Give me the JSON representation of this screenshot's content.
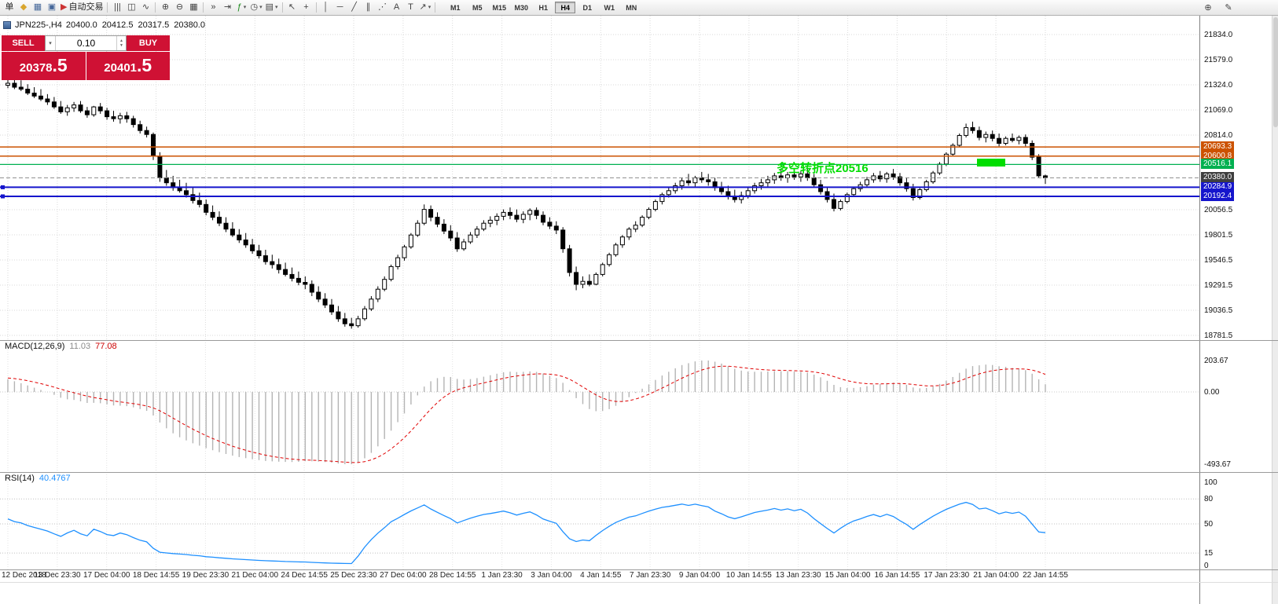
{
  "colors": {
    "panel_red": "#cf1134",
    "annotation_green": "#00dd00",
    "axis_text": "#111111"
  },
  "toolbar": {
    "items": [
      {
        "name": "new-order-button",
        "glyph": "单",
        "color": "#222222"
      },
      {
        "name": "market-watch-button",
        "glyph": "◆",
        "color": "#d9a62e"
      },
      {
        "name": "navigator-button",
        "glyph": "▦",
        "color": "#46689a"
      },
      {
        "name": "terminal-button",
        "glyph": "▣",
        "color": "#46689a"
      },
      {
        "name": "autotrading-button",
        "glyph": "▶",
        "color": "#cc3333",
        "label": "自动交易"
      },
      {
        "sep": true
      },
      {
        "name": "bar-chart-button",
        "glyph": "|||"
      },
      {
        "name": "candlestick-chart-button",
        "glyph": "◫"
      },
      {
        "name": "line-chart-button",
        "glyph": "∿"
      },
      {
        "sep": true
      },
      {
        "name": "zoom-in-button",
        "glyph": "⊕"
      },
      {
        "name": "zoom-out-button",
        "glyph": "⊖"
      },
      {
        "name": "tile-windows-button",
        "glyph": "▦"
      },
      {
        "sep": true
      },
      {
        "name": "auto-scroll-button",
        "glyph": "»"
      },
      {
        "name": "chart-shift-button",
        "glyph": "⇥"
      },
      {
        "name": "indicators-button",
        "glyph": "ƒ",
        "color": "#1a8a1a",
        "caret": true
      },
      {
        "name": "periods-button",
        "glyph": "◷",
        "caret": true
      },
      {
        "name": "templates-button",
        "glyph": "▤",
        "caret": true
      },
      {
        "sep": true
      },
      {
        "name": "cursor-button",
        "glyph": "↖"
      },
      {
        "name": "crosshair-button",
        "glyph": "+"
      },
      {
        "sep": true
      },
      {
        "name": "vertical-line-button",
        "glyph": "│"
      },
      {
        "name": "horizontal-line-button",
        "glyph": "─"
      },
      {
        "name": "trendline-button",
        "glyph": "╱"
      },
      {
        "name": "channel-button",
        "glyph": "∥"
      },
      {
        "name": "fibonacci-button",
        "glyph": "⋰"
      },
      {
        "name": "text-button",
        "glyph": "A"
      },
      {
        "name": "text-label-button",
        "glyph": "T"
      },
      {
        "name": "arrows-button",
        "glyph": "↗",
        "caret": true
      },
      {
        "sep": true
      }
    ],
    "timeframes": [
      "M1",
      "M5",
      "M15",
      "M30",
      "H1",
      "H4",
      "D1",
      "W1",
      "MN"
    ],
    "active_timeframe": "H4",
    "right_items": [
      {
        "name": "zoom-plus-button",
        "glyph": "⊕"
      },
      {
        "name": "edit-button",
        "glyph": "✎"
      }
    ]
  },
  "chart": {
    "title": "JPN225-,H4",
    "open": "20400.0",
    "high": "20412.5",
    "low": "20317.5",
    "close": "20380.0",
    "hlines": [
      {
        "value": 20693.3,
        "label": "20693.3",
        "color": "#cc5200",
        "width": 1.5
      },
      {
        "value": 20600.8,
        "label": "20600.8",
        "color": "#cc5200",
        "width": 1.5
      },
      {
        "value": 20516.1,
        "label": "20516.1",
        "color": "#00b050",
        "width": 1.2
      },
      {
        "value": 20284.9,
        "label": "20284.9",
        "color": "#1515cc",
        "width": 2,
        "handles": true
      },
      {
        "value": 20192.4,
        "label": "20192.4",
        "color": "#1515cc",
        "width": 2,
        "handles": true
      }
    ],
    "current_price": {
      "value": 20380.0,
      "label": "20380.0",
      "color": "#3f3f3f"
    },
    "annotation": {
      "text": "多空转折点20516",
      "color": "#00dd00"
    },
    "highlight_rect_color": "#00dd00"
  },
  "trade_panel": {
    "sell_label": "SELL",
    "buy_label": "BUY",
    "volume": "0.10",
    "sell_price_main": "20378",
    "sell_price_frac": ".5",
    "buy_price_main": "20401",
    "buy_price_frac": ".5"
  },
  "chart_data": {
    "type": "candlestick",
    "symbol": "JPN225-",
    "period": "H4",
    "y_axis": {
      "ticks": [
        "21834.0",
        "21579.0",
        "21324.0",
        "21069.0",
        "20814.0",
        "20056.5",
        "19801.5",
        "19546.5",
        "19291.5",
        "19036.5",
        "18781.5"
      ],
      "range": [
        18734,
        22025
      ]
    },
    "x_labels": [
      "12 Dec 2018",
      "13 Dec 23:30",
      "17 Dec 04:00",
      "18 Dec 14:55",
      "19 Dec 23:30",
      "21 Dec 04:00",
      "24 Dec 14:55",
      "25 Dec 23:30",
      "27 Dec 04:00",
      "28 Dec 14:55",
      "1 Jan 23:30",
      "3 Jan 04:00",
      "4 Jan 14:55",
      "7 Jan 23:30",
      "9 Jan 04:00",
      "10 Jan 14:55",
      "13 Jan 23:30",
      "15 Jan 04:00",
      "16 Jan 14:55",
      "17 Jan 23:30",
      "21 Jan 04:00",
      "22 Jan 14:55"
    ],
    "candles": [
      [
        21320,
        21400,
        21290,
        21340
      ],
      [
        21340,
        21390,
        21280,
        21300
      ],
      [
        21300,
        21370,
        21260,
        21280
      ],
      [
        21280,
        21330,
        21220,
        21240
      ],
      [
        21240,
        21300,
        21190,
        21210
      ],
      [
        21210,
        21280,
        21160,
        21180
      ],
      [
        21180,
        21230,
        21120,
        21150
      ],
      [
        21150,
        21200,
        21080,
        21100
      ],
      [
        21100,
        21160,
        21030,
        21050
      ],
      [
        21050,
        21120,
        21010,
        21090
      ],
      [
        21090,
        21150,
        21050,
        21120
      ],
      [
        21120,
        21160,
        21040,
        21060
      ],
      [
        21060,
        21100,
        20990,
        21020
      ],
      [
        21020,
        21110,
        21000,
        21100
      ],
      [
        21100,
        21140,
        21030,
        21060
      ],
      [
        21060,
        21090,
        20970,
        21000
      ],
      [
        21000,
        21060,
        20950,
        20980
      ],
      [
        20980,
        21040,
        20930,
        21010
      ],
      [
        21010,
        21050,
        20940,
        20980
      ],
      [
        20980,
        21010,
        20890,
        20920
      ],
      [
        20920,
        20960,
        20830,
        20860
      ],
      [
        20860,
        20900,
        20790,
        20820
      ],
      [
        20820,
        20840,
        20560,
        20600
      ],
      [
        20600,
        20640,
        20340,
        20380
      ],
      [
        20380,
        20460,
        20300,
        20330
      ],
      [
        20330,
        20400,
        20250,
        20280
      ],
      [
        20280,
        20360,
        20230,
        20250
      ],
      [
        20250,
        20330,
        20180,
        20210
      ],
      [
        20210,
        20280,
        20120,
        20150
      ],
      [
        20150,
        20230,
        20080,
        20110
      ],
      [
        20110,
        20160,
        20000,
        20030
      ],
      [
        20030,
        20100,
        19950,
        19980
      ],
      [
        19980,
        20040,
        19890,
        19920
      ],
      [
        19920,
        19980,
        19830,
        19860
      ],
      [
        19860,
        19930,
        19780,
        19800
      ],
      [
        19800,
        19860,
        19720,
        19750
      ],
      [
        19750,
        19820,
        19670,
        19700
      ],
      [
        19700,
        19760,
        19610,
        19640
      ],
      [
        19640,
        19700,
        19560,
        19590
      ],
      [
        19590,
        19650,
        19500,
        19530
      ],
      [
        19530,
        19600,
        19460,
        19500
      ],
      [
        19500,
        19560,
        19410,
        19450
      ],
      [
        19450,
        19520,
        19380,
        19400
      ],
      [
        19400,
        19470,
        19330,
        19360
      ],
      [
        19360,
        19430,
        19290,
        19320
      ],
      [
        19320,
        19380,
        19250,
        19300
      ],
      [
        19300,
        19340,
        19180,
        19220
      ],
      [
        19220,
        19280,
        19120,
        19150
      ],
      [
        19150,
        19210,
        19060,
        19090
      ],
      [
        19090,
        19150,
        18990,
        19020
      ],
      [
        19020,
        19080,
        18920,
        18950
      ],
      [
        18950,
        19010,
        18870,
        18900
      ],
      [
        18900,
        18960,
        18850,
        18880
      ],
      [
        18880,
        18980,
        18860,
        18950
      ],
      [
        18950,
        19080,
        18930,
        19050
      ],
      [
        19050,
        19180,
        19030,
        19150
      ],
      [
        19150,
        19280,
        19120,
        19250
      ],
      [
        19250,
        19380,
        19230,
        19350
      ],
      [
        19350,
        19500,
        19330,
        19480
      ],
      [
        19480,
        19600,
        19450,
        19570
      ],
      [
        19570,
        19700,
        19540,
        19680
      ],
      [
        19680,
        19820,
        19660,
        19800
      ],
      [
        19800,
        19950,
        19780,
        19920
      ],
      [
        19920,
        20110,
        19900,
        20060
      ],
      [
        20060,
        20100,
        19940,
        19980
      ],
      [
        19980,
        20030,
        19880,
        19910
      ],
      [
        19910,
        19960,
        19810,
        19840
      ],
      [
        19840,
        19900,
        19740,
        19770
      ],
      [
        19770,
        19830,
        19630,
        19660
      ],
      [
        19660,
        19760,
        19640,
        19730
      ],
      [
        19730,
        19830,
        19710,
        19800
      ],
      [
        19800,
        19890,
        19770,
        19860
      ],
      [
        19860,
        19950,
        19840,
        19920
      ],
      [
        19920,
        19990,
        19880,
        19950
      ],
      [
        19950,
        20020,
        19900,
        19990
      ],
      [
        19990,
        20060,
        19950,
        20030
      ],
      [
        20030,
        20080,
        19960,
        20000
      ],
      [
        20000,
        20060,
        19930,
        19960
      ],
      [
        19960,
        20040,
        19920,
        20010
      ],
      [
        20010,
        20070,
        19950,
        20050
      ],
      [
        20050,
        20080,
        19960,
        20000
      ],
      [
        20000,
        20040,
        19900,
        19930
      ],
      [
        19930,
        19980,
        19860,
        19890
      ],
      [
        19890,
        19940,
        19810,
        19850
      ],
      [
        19850,
        19880,
        19620,
        19660
      ],
      [
        19660,
        19700,
        19380,
        19420
      ],
      [
        19420,
        19480,
        19240,
        19300
      ],
      [
        19300,
        19380,
        19260,
        19330
      ],
      [
        19330,
        19400,
        19280,
        19300
      ],
      [
        19300,
        19420,
        19290,
        19400
      ],
      [
        19400,
        19520,
        19380,
        19500
      ],
      [
        19500,
        19620,
        19480,
        19600
      ],
      [
        19600,
        19720,
        19580,
        19700
      ],
      [
        19700,
        19800,
        19670,
        19780
      ],
      [
        19780,
        19880,
        19750,
        19860
      ],
      [
        19860,
        19940,
        19830,
        19900
      ],
      [
        19900,
        20000,
        19880,
        19980
      ],
      [
        19980,
        20080,
        19960,
        20060
      ],
      [
        20060,
        20160,
        20040,
        20140
      ],
      [
        20140,
        20230,
        20110,
        20210
      ],
      [
        20210,
        20290,
        20180,
        20250
      ],
      [
        20250,
        20330,
        20220,
        20300
      ],
      [
        20300,
        20380,
        20260,
        20350
      ],
      [
        20350,
        20420,
        20300,
        20330
      ],
      [
        20330,
        20400,
        20290,
        20380
      ],
      [
        20380,
        20440,
        20330,
        20360
      ],
      [
        20360,
        20420,
        20300,
        20340
      ],
      [
        20340,
        20380,
        20250,
        20280
      ],
      [
        20280,
        20340,
        20210,
        20240
      ],
      [
        20240,
        20300,
        20160,
        20190
      ],
      [
        20190,
        20260,
        20130,
        20160
      ],
      [
        20160,
        20240,
        20120,
        20200
      ],
      [
        20200,
        20280,
        20170,
        20250
      ],
      [
        20250,
        20330,
        20220,
        20300
      ],
      [
        20300,
        20370,
        20260,
        20330
      ],
      [
        20330,
        20400,
        20290,
        20360
      ],
      [
        20360,
        20430,
        20320,
        20400
      ],
      [
        20400,
        20460,
        20350,
        20380
      ],
      [
        20380,
        20440,
        20330,
        20410
      ],
      [
        20410,
        20470,
        20360,
        20390
      ],
      [
        20390,
        20450,
        20340,
        20420
      ],
      [
        20420,
        20470,
        20350,
        20380
      ],
      [
        20380,
        20420,
        20280,
        20310
      ],
      [
        20310,
        20360,
        20210,
        20240
      ],
      [
        20240,
        20290,
        20130,
        20160
      ],
      [
        20160,
        20220,
        20040,
        20070
      ],
      [
        20070,
        20160,
        20050,
        20140
      ],
      [
        20140,
        20230,
        20120,
        20210
      ],
      [
        20210,
        20290,
        20190,
        20270
      ],
      [
        20270,
        20340,
        20240,
        20310
      ],
      [
        20310,
        20390,
        20280,
        20360
      ],
      [
        20360,
        20430,
        20330,
        20400
      ],
      [
        20400,
        20450,
        20340,
        20370
      ],
      [
        20370,
        20440,
        20330,
        20420
      ],
      [
        20420,
        20470,
        20360,
        20390
      ],
      [
        20390,
        20430,
        20300,
        20330
      ],
      [
        20330,
        20380,
        20240,
        20270
      ],
      [
        20270,
        20320,
        20150,
        20180
      ],
      [
        20180,
        20280,
        20160,
        20260
      ],
      [
        20260,
        20360,
        20240,
        20340
      ],
      [
        20340,
        20450,
        20320,
        20430
      ],
      [
        20430,
        20540,
        20410,
        20520
      ],
      [
        20520,
        20640,
        20500,
        20620
      ],
      [
        20620,
        20730,
        20600,
        20710
      ],
      [
        20710,
        20830,
        20690,
        20810
      ],
      [
        20810,
        20930,
        20790,
        20890
      ],
      [
        20890,
        20950,
        20830,
        20860
      ],
      [
        20860,
        20900,
        20760,
        20790
      ],
      [
        20790,
        20850,
        20740,
        20820
      ],
      [
        20820,
        20860,
        20750,
        20780
      ],
      [
        20780,
        20830,
        20700,
        20730
      ],
      [
        20730,
        20800,
        20710,
        20780
      ],
      [
        20780,
        20830,
        20740,
        20760
      ],
      [
        20760,
        20810,
        20720,
        20790
      ],
      [
        20790,
        20820,
        20700,
        20730
      ],
      [
        20730,
        20760,
        20560,
        20590
      ],
      [
        20590,
        20620,
        20380,
        20400
      ],
      [
        20400,
        20412.5,
        20317.5,
        20380
      ]
    ],
    "indicators": {
      "macd": {
        "label": "MACD(12,26,9)",
        "value_main": "11.03",
        "value_signal": "77.08",
        "params": [
          12,
          26,
          9
        ],
        "axis_ticks": [
          "203.67",
          "0.00",
          "-493.67"
        ],
        "histogram_color": "#b4b4b4",
        "signal_color": "#e00000"
      },
      "rsi": {
        "label": "RSI(14)",
        "value": "40.4767",
        "period": 14,
        "levels": [
          80,
          50,
          15
        ],
        "axis_ticks": [
          "100",
          "80",
          "50",
          "15",
          "0"
        ],
        "line_color": "#1e90ff"
      }
    }
  }
}
